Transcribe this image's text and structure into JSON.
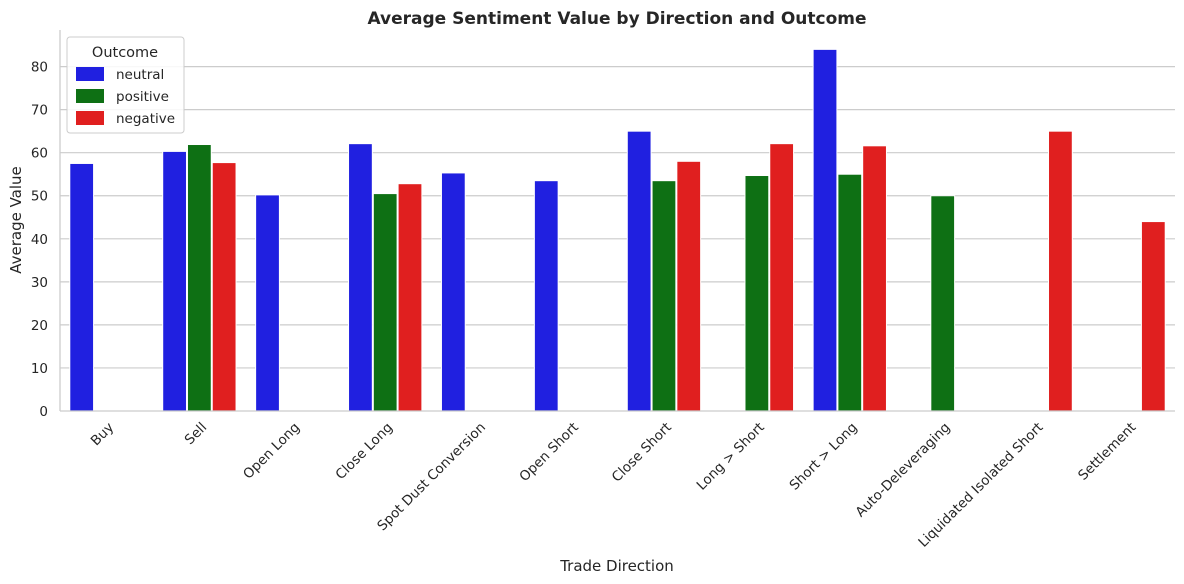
{
  "chart_data": {
    "type": "bar",
    "title": "Average Sentiment Value by Direction and Outcome",
    "xlabel": "Trade Direction",
    "ylabel": "Average Value",
    "ylim": [
      0,
      88.5
    ],
    "yticks": [
      0,
      10,
      20,
      30,
      40,
      50,
      60,
      70,
      80
    ],
    "grid": "horizontal",
    "legend": {
      "title": "Outcome",
      "placement": "top-left"
    },
    "categories": [
      "Buy",
      "Sell",
      "Open Long",
      "Close Long",
      "Spot Dust Conversion",
      "Open Short",
      "Close Short",
      "Long > Short",
      "Short > Long",
      "Auto-Deleveraging",
      "Liquidated Isolated Short",
      "Settlement"
    ],
    "series": [
      {
        "name": "neutral",
        "color": "#2020e0",
        "values": [
          57.5,
          60.3,
          50.2,
          62.1,
          55.3,
          53.5,
          65.0,
          null,
          84.0,
          null,
          null,
          null
        ]
      },
      {
        "name": "positive",
        "color": "#0e7014",
        "values": [
          null,
          61.9,
          null,
          50.5,
          null,
          null,
          53.5,
          54.7,
          55.0,
          50.0,
          null,
          null
        ]
      },
      {
        "name": "negative",
        "color": "#e01f1f",
        "values": [
          null,
          57.7,
          null,
          52.8,
          null,
          null,
          58.0,
          62.1,
          61.6,
          null,
          65.0,
          44.0
        ]
      }
    ]
  }
}
